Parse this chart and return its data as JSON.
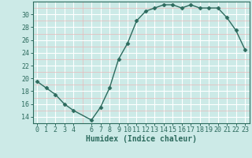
{
  "x": [
    0,
    1,
    2,
    3,
    4,
    6,
    7,
    8,
    9,
    10,
    11,
    12,
    13,
    14,
    15,
    16,
    17,
    18,
    19,
    20,
    21,
    22,
    23
  ],
  "y": [
    19.5,
    18.5,
    17.5,
    16.0,
    15.0,
    13.5,
    15.5,
    18.5,
    23.0,
    25.5,
    29.0,
    30.5,
    31.0,
    31.5,
    31.5,
    31.0,
    31.5,
    31.0,
    31.0,
    31.0,
    29.5,
    27.5,
    24.5
  ],
  "line_color": "#2d6b5e",
  "bg_color": "#cceae7",
  "grid_color_white": "#ffffff",
  "grid_color_pink": "#e8b8b8",
  "xlabel": "Humidex (Indice chaleur)",
  "xlim": [
    -0.5,
    23.5
  ],
  "ylim": [
    13,
    32
  ],
  "yticks": [
    14,
    16,
    18,
    20,
    22,
    24,
    26,
    28,
    30
  ],
  "xticks": [
    0,
    1,
    2,
    3,
    4,
    6,
    7,
    8,
    9,
    10,
    11,
    12,
    13,
    14,
    15,
    16,
    17,
    18,
    19,
    20,
    21,
    22,
    23
  ],
  "marker": "D",
  "markersize": 2.5,
  "linewidth": 1.0,
  "xlabel_fontsize": 7,
  "tick_fontsize": 6
}
